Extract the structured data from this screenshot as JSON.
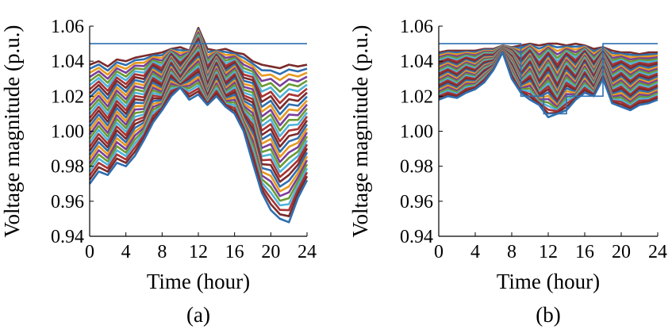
{
  "chart_data": [
    {
      "type": "line",
      "panel_label": "(a)",
      "xlabel": "Time (hour)",
      "ylabel": "Voltage magnitude (p.u.)",
      "xlim": [
        0,
        24
      ],
      "ylim": [
        0.94,
        1.06
      ],
      "xticks": [
        0,
        4,
        8,
        12,
        16,
        20,
        24
      ],
      "yticks": [
        0.94,
        0.96,
        0.98,
        1.0,
        1.02,
        1.04,
        1.06
      ],
      "xtick_labels": [
        "0",
        "4",
        "8",
        "12",
        "16",
        "20",
        "24"
      ],
      "ytick_labels": [
        "0.94",
        "0.96",
        "0.98",
        "1.00",
        "1.02",
        "1.04",
        "1.06"
      ],
      "grid": false,
      "upper_limit": {
        "x": [
          0,
          24
        ],
        "y": [
          1.05,
          1.05
        ],
        "color": "#2e6fb0"
      },
      "x": [
        0,
        1,
        2,
        3,
        4,
        5,
        6,
        7,
        8,
        9,
        10,
        11,
        12,
        13,
        14,
        15,
        16,
        17,
        18,
        19,
        20,
        21,
        22,
        23,
        24
      ],
      "series_top": [
        1.038,
        1.04,
        1.037,
        1.041,
        1.04,
        1.042,
        1.043,
        1.044,
        1.045,
        1.047,
        1.048,
        1.046,
        1.059,
        1.047,
        1.046,
        1.047,
        1.045,
        1.044,
        1.04,
        1.038,
        1.037,
        1.036,
        1.038,
        1.037,
        1.038
      ],
      "series_bottom": [
        0.97,
        0.977,
        0.975,
        0.982,
        0.98,
        0.986,
        0.995,
        1.005,
        1.012,
        1.02,
        1.025,
        1.018,
        1.021,
        1.015,
        1.02,
        1.014,
        1.01,
        1.0,
        0.982,
        0.965,
        0.955,
        0.95,
        0.948,
        0.962,
        0.972
      ],
      "band_noise": [
        0.0,
        0.004,
        -0.003,
        0.005,
        -0.002,
        0.006,
        -0.004,
        0.007,
        -0.006,
        0.008,
        -0.012,
        0.01,
        0.006,
        -0.01,
        0.009,
        -0.008,
        0.006,
        -0.007,
        0.008,
        -0.009,
        0.007,
        -0.006,
        0.005,
        -0.004,
        0.0
      ],
      "num_series": 30,
      "colors": [
        "#7b2b2b",
        "#2e6fb0",
        "#e69a1f",
        "#7b3f9a",
        "#6a9a35",
        "#4fb3d9",
        "#a83232"
      ]
    },
    {
      "type": "line",
      "panel_label": "(b)",
      "xlabel": "Time (hour)",
      "ylabel": "Voltage magnitude (p.u.)",
      "xlim": [
        0,
        24
      ],
      "ylim": [
        0.94,
        1.06
      ],
      "xticks": [
        0,
        4,
        8,
        12,
        16,
        20,
        24
      ],
      "yticks": [
        0.94,
        0.96,
        0.98,
        1.0,
        1.02,
        1.04,
        1.06
      ],
      "xtick_labels": [
        "0",
        "4",
        "8",
        "12",
        "16",
        "20",
        "24"
      ],
      "ytick_labels": [
        "0.94",
        "0.96",
        "0.98",
        "1.00",
        "1.02",
        "1.04",
        "1.06"
      ],
      "grid": false,
      "upper_limit": {
        "x": [
          0,
          7,
          7,
          9,
          9,
          11.5,
          11.5,
          14,
          14,
          18,
          18,
          24
        ],
        "y": [
          1.05,
          1.05,
          1.05,
          1.05,
          1.02,
          1.02,
          1.01,
          1.01,
          1.02,
          1.02,
          1.05,
          1.05
        ],
        "color": "#2e6fb0"
      },
      "x": [
        0,
        1,
        2,
        3,
        4,
        5,
        6,
        7,
        8,
        9,
        10,
        11,
        12,
        13,
        14,
        15,
        16,
        17,
        18,
        19,
        20,
        21,
        22,
        23,
        24
      ],
      "series_top": [
        1.045,
        1.046,
        1.046,
        1.046,
        1.046,
        1.047,
        1.047,
        1.049,
        1.048,
        1.049,
        1.05,
        1.049,
        1.05,
        1.05,
        1.049,
        1.05,
        1.049,
        1.047,
        1.048,
        1.046,
        1.045,
        1.045,
        1.044,
        1.045,
        1.045
      ],
      "series_bottom": [
        1.018,
        1.02,
        1.019,
        1.022,
        1.024,
        1.028,
        1.035,
        1.045,
        1.03,
        1.022,
        1.018,
        1.015,
        1.008,
        1.01,
        1.012,
        1.018,
        1.022,
        1.02,
        1.03,
        1.016,
        1.014,
        1.012,
        1.015,
        1.016,
        1.018
      ],
      "band_noise": [
        0.0,
        0.002,
        -0.002,
        0.003,
        -0.002,
        0.002,
        -0.002,
        0.0,
        0.006,
        -0.007,
        0.008,
        -0.009,
        0.01,
        -0.01,
        0.009,
        -0.008,
        0.007,
        -0.006,
        0.004,
        -0.005,
        0.004,
        -0.003,
        0.003,
        -0.002,
        0.0
      ],
      "num_series": 30,
      "colors": [
        "#7b2b2b",
        "#2e6fb0",
        "#e69a1f",
        "#7b3f9a",
        "#6a9a35",
        "#4fb3d9",
        "#a83232"
      ]
    }
  ]
}
